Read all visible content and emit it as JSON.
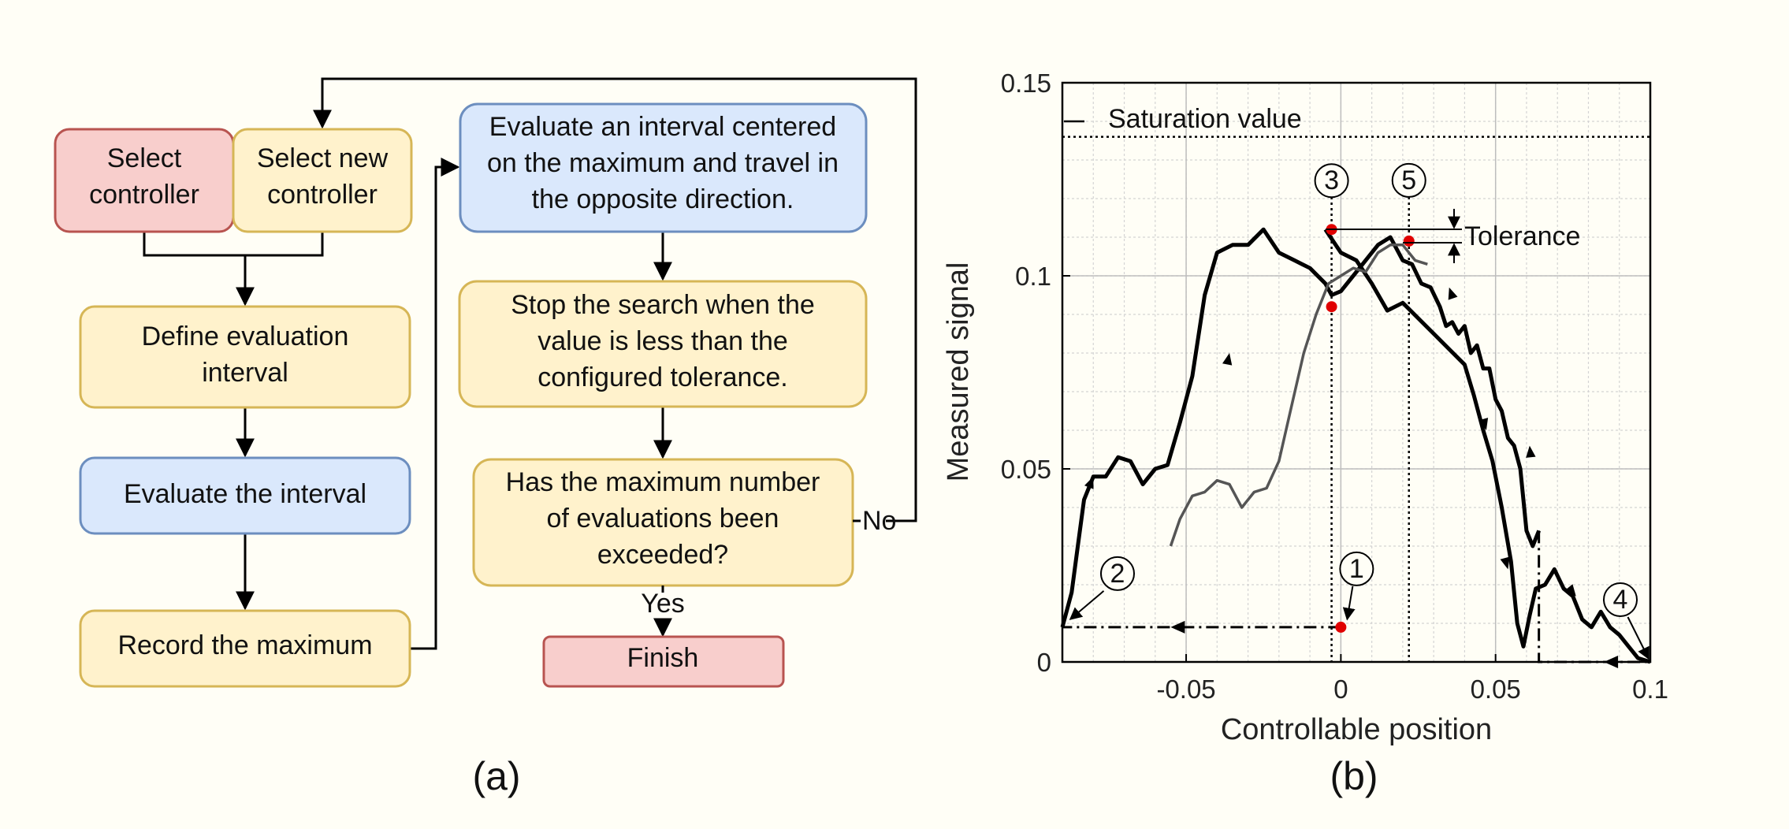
{
  "flowchart": {
    "boxes": {
      "select_controller": [
        "Select",
        "controller"
      ],
      "select_new_controller": [
        "Select new",
        "controller"
      ],
      "define_interval": [
        "Define evaluation",
        "interval"
      ],
      "evaluate_interval": [
        "Evaluate the interval"
      ],
      "record_max": [
        "Record the maximum"
      ],
      "evaluate_centered": [
        "Evaluate an interval centered",
        "on the maximum and travel in",
        "the opposite direction."
      ],
      "stop_search": [
        "Stop the search when the",
        "value is less than the",
        "configured tolerance."
      ],
      "max_evals": [
        "Has the maximum number",
        "of evaluations been",
        "exceeded?"
      ],
      "finish": [
        "Finish"
      ]
    },
    "branch_no": "No",
    "branch_yes": "Yes",
    "colors": {
      "red_fill": "#f8cecc",
      "red_stroke": "#b85450",
      "yellow_fill": "#fff2cc",
      "yellow_stroke": "#d6b656",
      "blue_fill": "#dae8fc",
      "blue_stroke": "#6c8ebf"
    }
  },
  "chart_data": {
    "type": "line",
    "xlabel": "Controllable position",
    "ylabel": "Measured signal",
    "xlim": [
      -0.09,
      0.1
    ],
    "ylim": [
      0,
      0.15
    ],
    "xticks": [
      -0.05,
      0,
      0.05,
      0.1
    ],
    "xtick_labels": [
      "-0.05",
      "0",
      "0.05",
      "0.1"
    ],
    "yticks": [
      0,
      0.05,
      0.1,
      0.15
    ],
    "ytick_labels": [
      "0",
      "0.05",
      "0.1",
      "0.15"
    ],
    "grid": true,
    "saturation": {
      "value": 0.136,
      "label": "Saturation value"
    },
    "tolerance_label": "Tolerance",
    "series": [
      {
        "color": "#000000",
        "width": 5,
        "x": [
          -0.09,
          -0.087,
          -0.085,
          -0.083,
          -0.08,
          -0.076,
          -0.072,
          -0.068,
          -0.064,
          -0.06,
          -0.056,
          -0.052,
          -0.048,
          -0.044,
          -0.04,
          -0.035,
          -0.03,
          -0.025,
          -0.02,
          -0.015,
          -0.01,
          -0.005,
          -0.003,
          0.0,
          0.004,
          0.008,
          0.012,
          0.016,
          0.02,
          0.023,
          0.026,
          0.029,
          0.032,
          0.034,
          0.036,
          0.038,
          0.04,
          0.042,
          0.044,
          0.046,
          0.048,
          0.05,
          0.052,
          0.054,
          0.056,
          0.058,
          0.06,
          0.062,
          0.064
        ],
        "y": [
          0.009,
          0.018,
          0.03,
          0.042,
          0.048,
          0.048,
          0.053,
          0.052,
          0.046,
          0.05,
          0.051,
          0.062,
          0.074,
          0.095,
          0.106,
          0.108,
          0.108,
          0.112,
          0.106,
          0.104,
          0.102,
          0.098,
          0.095,
          0.096,
          0.1,
          0.104,
          0.108,
          0.11,
          0.104,
          0.103,
          0.098,
          0.097,
          0.092,
          0.087,
          0.088,
          0.085,
          0.087,
          0.08,
          0.082,
          0.076,
          0.076,
          0.068,
          0.065,
          0.058,
          0.056,
          0.05,
          0.034,
          0.03,
          0.034
        ]
      },
      {
        "color": "#000000",
        "width": 5,
        "x": [
          -0.005,
          0.0,
          0.005,
          0.01,
          0.015,
          0.02,
          0.025,
          0.03,
          0.035,
          0.04,
          0.043,
          0.046,
          0.049,
          0.052,
          0.055,
          0.057,
          0.059,
          0.061,
          0.063,
          0.066,
          0.069,
          0.072,
          0.075,
          0.078,
          0.081,
          0.084,
          0.087,
          0.09,
          0.093,
          0.096,
          0.1
        ],
        "y": [
          0.112,
          0.106,
          0.104,
          0.098,
          0.091,
          0.093,
          0.089,
          0.085,
          0.081,
          0.077,
          0.069,
          0.06,
          0.052,
          0.04,
          0.026,
          0.01,
          0.004,
          0.012,
          0.019,
          0.02,
          0.024,
          0.019,
          0.017,
          0.011,
          0.009,
          0.013,
          0.009,
          0.007,
          0.004,
          0.001,
          0.0
        ]
      },
      {
        "color": "#555555",
        "width": 3.5,
        "x": [
          -0.055,
          -0.052,
          -0.048,
          -0.044,
          -0.04,
          -0.036,
          -0.032,
          -0.028,
          -0.024,
          -0.02,
          -0.016,
          -0.012,
          -0.008,
          -0.004,
          0.0,
          0.004,
          0.008,
          0.012,
          0.016,
          0.02,
          0.024,
          0.028
        ],
        "y": [
          0.03,
          0.037,
          0.043,
          0.044,
          0.047,
          0.046,
          0.04,
          0.044,
          0.045,
          0.052,
          0.066,
          0.08,
          0.09,
          0.098,
          0.1,
          0.102,
          0.101,
          0.106,
          0.108,
          0.108,
          0.104,
          0.103
        ]
      }
    ],
    "markers": [
      {
        "x": -0.003,
        "y": 0.112,
        "color": "#e00000"
      },
      {
        "x": -0.003,
        "y": 0.092,
        "color": "#e00000"
      },
      {
        "x": 0.022,
        "y": 0.109,
        "color": "#e00000"
      },
      {
        "x": 0.0,
        "y": 0.009,
        "color": "#e00000"
      }
    ],
    "annotations": [
      {
        "label": "1",
        "x": 0.0,
        "y": 0.009
      },
      {
        "label": "2",
        "x": -0.09,
        "y": 0.009
      },
      {
        "label": "3",
        "x": -0.003,
        "y": 0.112
      },
      {
        "label": "4",
        "x": 0.1,
        "y": 0.0
      },
      {
        "label": "5",
        "x": 0.022,
        "y": 0.109
      }
    ]
  },
  "panel_labels": {
    "a": "(a)",
    "b": "(b)"
  }
}
